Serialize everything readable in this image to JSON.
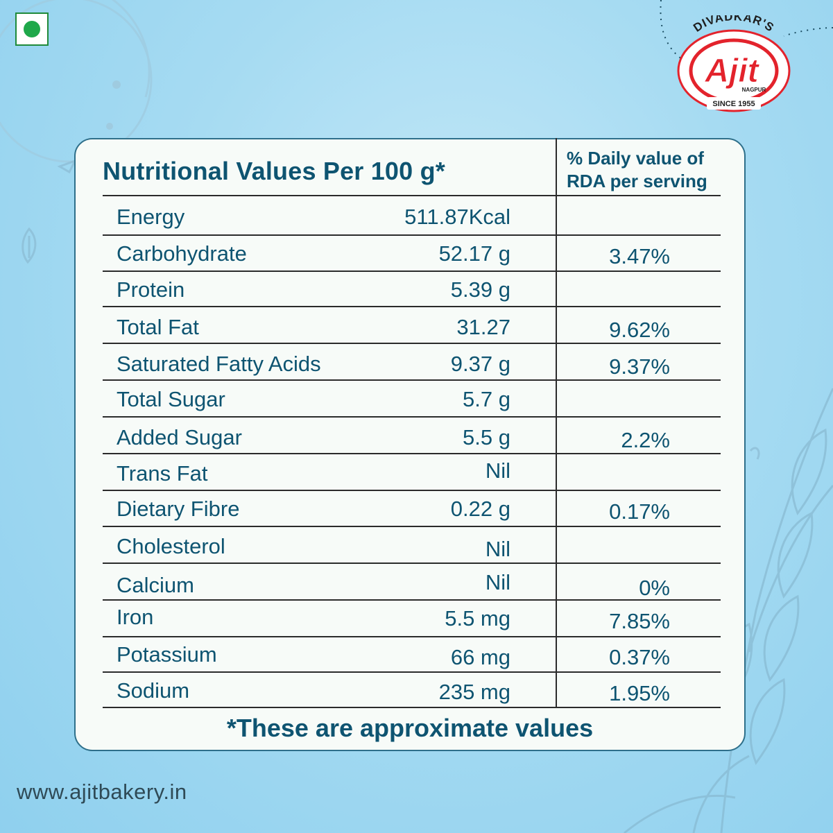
{
  "brand": {
    "top_text": "DIVADKAR'S",
    "name": "Ajit",
    "city": "NAGPUR",
    "since": "SINCE 1955",
    "colors": {
      "red": "#e3232c",
      "white": "#ffffff"
    }
  },
  "veg_mark": {
    "icon": "veg-symbol-icon",
    "color": "#1fa84a"
  },
  "table": {
    "title": "Nutritional Values Per 100 g*",
    "rda_header_line1": "% Daily value of",
    "rda_header_line2": "RDA per serving",
    "rows": [
      {
        "nutrient": "Energy",
        "amount": "511.87Kcal",
        "rda": ""
      },
      {
        "nutrient": "Carbohydrate",
        "amount": "52.17 g",
        "rda": "3.47%"
      },
      {
        "nutrient": "Protein",
        "amount": "5.39 g",
        "rda": ""
      },
      {
        "nutrient": "Total Fat",
        "amount": "31.27",
        "rda": "9.62%"
      },
      {
        "nutrient": "Saturated Fatty Acids",
        "amount": "9.37 g",
        "rda": "9.37%"
      },
      {
        "nutrient": "Total Sugar",
        "amount": "5.7 g",
        "rda": ""
      },
      {
        "nutrient": "Added Sugar",
        "amount": "5.5 g",
        "rda": "2.2%"
      },
      {
        "nutrient": "Trans Fat",
        "amount": "Nil",
        "rda": ""
      },
      {
        "nutrient": "Dietary Fibre",
        "amount": "0.22 g",
        "rda": "0.17%"
      },
      {
        "nutrient": "Cholesterol",
        "amount": "Nil",
        "rda": ""
      },
      {
        "nutrient": "Calcium",
        "amount": "Nil",
        "rda": "0%"
      },
      {
        "nutrient": "Iron",
        "amount": "5.5 mg",
        "rda": "7.85%"
      },
      {
        "nutrient": "Potassium",
        "amount": "66 mg",
        "rda": "0.37%"
      },
      {
        "nutrient": "Sodium",
        "amount": "235 mg",
        "rda": "1.95%"
      }
    ],
    "footnote": "*These are approximate values"
  },
  "website": "www.ajitbakery.in",
  "colors": {
    "text": "#0e5471",
    "background": "#a6dbf2",
    "card": "#f7fbf8"
  }
}
